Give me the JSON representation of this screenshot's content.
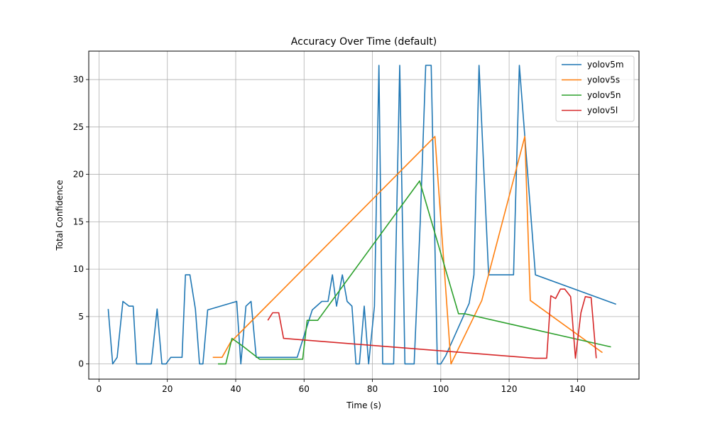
{
  "chart_data": {
    "type": "line",
    "title": "Accuracy Over Time (default)",
    "xlabel": "Time (s)",
    "ylabel": "Total Confidence",
    "xlim": [
      -3,
      158
    ],
    "ylim": [
      -1.6,
      33.0
    ],
    "xticks": [
      0,
      20,
      40,
      60,
      80,
      100,
      120,
      140
    ],
    "yticks": [
      0,
      5,
      10,
      15,
      20,
      25,
      30
    ],
    "grid": true,
    "legend_position": "top-right",
    "series": [
      {
        "name": "yolov5m",
        "color": "#1f77b4",
        "points": [
          [
            2.7,
            5.8
          ],
          [
            4.0,
            0.0
          ],
          [
            5.3,
            0.7
          ],
          [
            7.0,
            6.6
          ],
          [
            8.8,
            6.1
          ],
          [
            10.0,
            6.1
          ],
          [
            11.0,
            0.0
          ],
          [
            15.3,
            0.0
          ],
          [
            17.0,
            5.8
          ],
          [
            18.4,
            0.0
          ],
          [
            19.6,
            0.0
          ],
          [
            21.0,
            0.7
          ],
          [
            24.3,
            0.7
          ],
          [
            25.3,
            9.4
          ],
          [
            26.6,
            9.4
          ],
          [
            28.2,
            5.8
          ],
          [
            29.4,
            0.0
          ],
          [
            30.4,
            0.0
          ],
          [
            31.8,
            5.7
          ],
          [
            40.3,
            6.6
          ],
          [
            41.5,
            0.0
          ],
          [
            43.0,
            6.1
          ],
          [
            44.5,
            6.6
          ],
          [
            46.0,
            0.7
          ],
          [
            58.0,
            0.7
          ],
          [
            62.4,
            5.7
          ],
          [
            65.2,
            6.6
          ],
          [
            67.0,
            6.6
          ],
          [
            68.3,
            9.4
          ],
          [
            69.5,
            6.1
          ],
          [
            71.2,
            9.4
          ],
          [
            72.6,
            6.6
          ],
          [
            74.0,
            6.1
          ],
          [
            75.2,
            0.0
          ],
          [
            76.2,
            0.0
          ],
          [
            77.6,
            6.1
          ],
          [
            78.9,
            0.0
          ],
          [
            80.6,
            6.1
          ],
          [
            81.9,
            31.5
          ],
          [
            83.0,
            0.0
          ],
          [
            86.2,
            0.0
          ],
          [
            88.0,
            31.5
          ],
          [
            89.5,
            0.0
          ],
          [
            92.2,
            0.0
          ],
          [
            94.0,
            15.0
          ],
          [
            95.6,
            31.5
          ],
          [
            97.2,
            31.5
          ],
          [
            99.0,
            0.0
          ],
          [
            100.0,
            0.0
          ],
          [
            101.5,
            0.9
          ],
          [
            108.3,
            6.4
          ],
          [
            109.7,
            9.4
          ],
          [
            111.2,
            31.5
          ],
          [
            114.0,
            9.4
          ],
          [
            121.3,
            9.4
          ],
          [
            123.0,
            31.5
          ],
          [
            127.7,
            9.4
          ],
          [
            151.3,
            6.3
          ]
        ]
      },
      {
        "name": "yolov5s",
        "color": "#ff7f0e",
        "points": [
          [
            33.3,
            0.7
          ],
          [
            36.0,
            0.7
          ],
          [
            38.5,
            2.3
          ],
          [
            98.3,
            24.0
          ],
          [
            103.0,
            0.0
          ],
          [
            112.0,
            6.7
          ],
          [
            124.6,
            24.0
          ],
          [
            126.2,
            6.7
          ],
          [
            147.3,
            1.2
          ]
        ]
      },
      {
        "name": "yolov5n",
        "color": "#2ca02c",
        "points": [
          [
            34.8,
            0.0
          ],
          [
            37.1,
            0.0
          ],
          [
            38.9,
            2.7
          ],
          [
            42.0,
            1.9
          ],
          [
            47.0,
            0.5
          ],
          [
            59.6,
            0.5
          ],
          [
            60.9,
            4.6
          ],
          [
            64.0,
            4.6
          ],
          [
            93.8,
            19.3
          ],
          [
            105.2,
            5.3
          ],
          [
            107.0,
            5.3
          ],
          [
            149.8,
            1.8
          ]
        ]
      },
      {
        "name": "yolov5l",
        "color": "#d62728",
        "points": [
          [
            49.4,
            4.6
          ],
          [
            50.8,
            5.4
          ],
          [
            52.6,
            5.4
          ],
          [
            54.0,
            2.7
          ],
          [
            127.6,
            0.6
          ],
          [
            131.0,
            0.6
          ],
          [
            132.2,
            7.2
          ],
          [
            133.6,
            6.9
          ],
          [
            135.0,
            7.9
          ],
          [
            136.3,
            7.9
          ],
          [
            138.0,
            7.1
          ],
          [
            139.4,
            0.6
          ],
          [
            141.0,
            5.4
          ],
          [
            142.3,
            7.1
          ],
          [
            144.0,
            7.0
          ],
          [
            145.5,
            0.6
          ]
        ]
      }
    ]
  }
}
